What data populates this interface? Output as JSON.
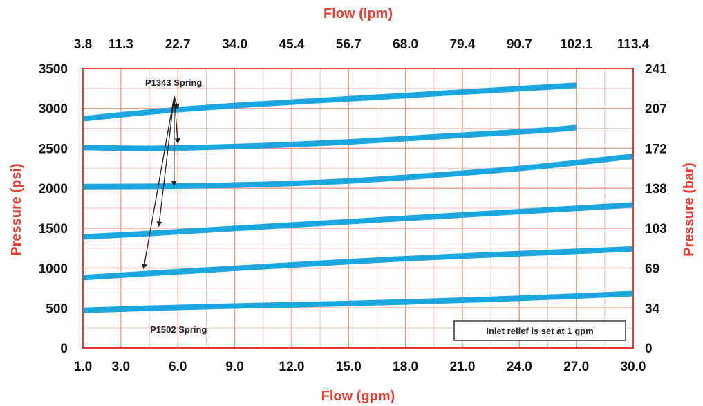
{
  "chart_data": {
    "type": "line",
    "xlabel": "Flow (gpm)",
    "x2label": "Flow (lpm)",
    "ylabel": "Pressure (psi)",
    "y2label": "Pressure (bar)",
    "xlim": [
      1.0,
      30.0
    ],
    "ylim": [
      0,
      3500
    ],
    "grid": true,
    "x_ticks": [
      "1.0",
      "3.0",
      "6.0",
      "9.0",
      "12.0",
      "15.0",
      "18.0",
      "21.0",
      "24.0",
      "27.0",
      "30.0"
    ],
    "x2_ticks": [
      "3.8",
      "11.3",
      "22.7",
      "34.0",
      "45.4",
      "56.7",
      "68.0",
      "79.4",
      "90.7",
      "102.1",
      "113.4"
    ],
    "y_ticks": [
      "0",
      "500",
      "1000",
      "1500",
      "2000",
      "2500",
      "3000",
      "3500"
    ],
    "y2_ticks": [
      "0",
      "34",
      "69",
      "103",
      "138",
      "172",
      "207",
      "241"
    ],
    "series": [
      {
        "x": [
          1,
          5,
          10,
          15,
          20,
          25,
          27
        ],
        "values": [
          2870,
          2965,
          3050,
          3120,
          3190,
          3260,
          3290
        ]
      },
      {
        "x": [
          1,
          5,
          10,
          15,
          20,
          25,
          27
        ],
        "values": [
          2510,
          2500,
          2530,
          2580,
          2650,
          2720,
          2760
        ]
      },
      {
        "x": [
          1,
          5,
          10,
          15,
          20,
          25,
          30
        ],
        "values": [
          2020,
          2025,
          2045,
          2090,
          2170,
          2270,
          2400
        ]
      },
      {
        "x": [
          1,
          5,
          10,
          15,
          20,
          25,
          30
        ],
        "values": [
          1390,
          1440,
          1510,
          1580,
          1650,
          1720,
          1790
        ]
      },
      {
        "x": [
          1,
          5,
          10,
          15,
          20,
          25,
          30
        ],
        "values": [
          880,
          940,
          1010,
          1080,
          1140,
          1190,
          1240
        ]
      },
      {
        "x": [
          1,
          5,
          10,
          15,
          20,
          25,
          30
        ],
        "values": [
          470,
          500,
          530,
          555,
          590,
          630,
          680
        ]
      }
    ],
    "series_color": "#1aa7e0",
    "grid_color": "#f29282",
    "axis_color": "#ee3b2f",
    "annotations": [
      {
        "text": "P1343 Spring",
        "arrow_targets": [
          [
            6,
            3000
          ],
          [
            6,
            2570
          ],
          [
            5.8,
            2040
          ],
          [
            5.0,
            1530
          ],
          [
            4.2,
            1000
          ]
        ]
      },
      {
        "text": "P1502 Spring"
      }
    ],
    "note": "Inlet relief is set at 1 gpm"
  }
}
